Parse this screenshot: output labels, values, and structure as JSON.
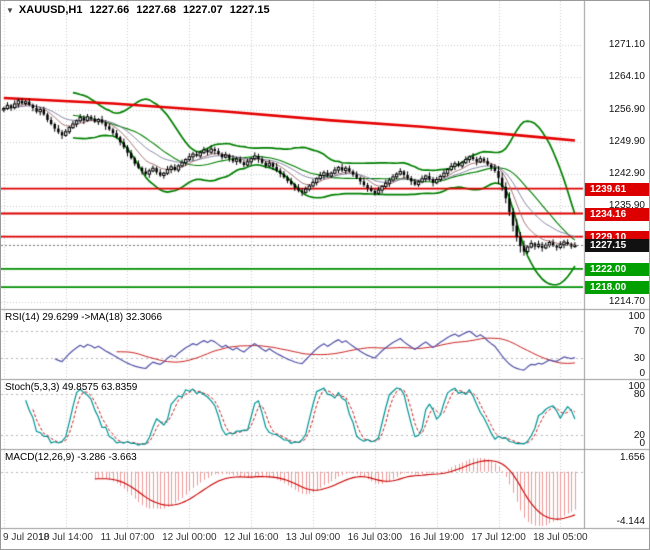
{
  "header": {
    "dropdown_icon": "▼",
    "symbol": "XAUUSD,H1",
    "open": "1227.66",
    "high": "1227.68",
    "low": "1227.07",
    "close": "1227.15"
  },
  "colors": {
    "background": "#ffffff",
    "grid": "#cdcdcd",
    "separator": "#9a9a9a",
    "candle_up": "#ffffff",
    "candle_down": "#000000",
    "candle_border": "#000000",
    "bollinger": "#008000",
    "trend_ma": "#e60000",
    "fast_ma": "#a06868",
    "slow_ma": "#7d7da0",
    "hline_red": "#dd0000",
    "hline_green": "#009000",
    "current_price_line": "#777777",
    "tag_red": "#dd0000",
    "tag_green": "#00a000",
    "tag_current": "#111111",
    "rsi_line": "#5252a8",
    "rsi_ma": "#cc2222",
    "stoch_main": "#009595",
    "stoch_signal": "#cc2222",
    "macd_hist": "#ef9a9a",
    "macd_signal": "#cc0000",
    "axis_text": "#111111",
    "time_text": "#333333"
  },
  "indicator_panels": {
    "rsi": {
      "label": "RSI(14) 29.6299  ->MA(18) 32.3066",
      "ticks": [
        100,
        70,
        30,
        0
      ],
      "levels": [
        70,
        30
      ]
    },
    "stoch": {
      "label": "Stoch(5,3,3) 49.8575 63.8359",
      "ticks": [
        100,
        80,
        20,
        0
      ],
      "levels": [
        80,
        20
      ]
    },
    "macd": {
      "label": "MACD(12,26,9) -3.286 -3.663",
      "tick_top": "1.656",
      "tick_bottom": "-4.144"
    }
  },
  "price_tags": [
    {
      "label": "1239.61",
      "price": 1239.61,
      "type": "resistance",
      "bg": "red"
    },
    {
      "label": "1234.16",
      "price": 1234.16,
      "type": "resistance",
      "bg": "red"
    },
    {
      "label": "1229.10",
      "price": 1229.1,
      "type": "resistance",
      "bg": "red"
    },
    {
      "label": "1227.15",
      "price": 1227.15,
      "type": "current",
      "bg": "black"
    },
    {
      "label": "1222.00",
      "price": 1222.0,
      "type": "support",
      "bg": "green"
    },
    {
      "label": "1218.00",
      "price": 1218.0,
      "type": "support",
      "bg": "green"
    }
  ],
  "chart_data": {
    "type": "candlestick",
    "symbol": "XAUUSD",
    "timeframe": "H1",
    "title": "XAUUSD,H1",
    "last_bar": {
      "open": 1227.66,
      "high": 1227.68,
      "low": 1227.07,
      "close": 1227.15
    },
    "current_price": 1227.15,
    "ylim": [
      1213.2,
      1280.8
    ],
    "y_ticks": [
      1271.1,
      1264.1,
      1256.9,
      1249.9,
      1242.9,
      1235.9,
      1228.9,
      1221.9,
      1214.7
    ],
    "x_tick_labels": [
      "9 Jul 2018",
      "10 Jul 14:00",
      "11 Jul 07:00",
      "12 Jul 00:00",
      "12 Jul 16:00",
      "13 Jul 09:00",
      "16 Jul 03:00",
      "16 Jul 19:00",
      "17 Jul 12:00",
      "18 Jul 05:00"
    ],
    "bars_per_x_tick": 17,
    "open_rule": "previous_close",
    "wick_up_pattern": [
      0.4,
      0.7,
      0.3,
      0.8,
      0.5,
      0.6
    ],
    "wick_down_pattern": [
      0.5,
      0.3,
      0.7,
      0.4,
      0.8,
      0.3
    ],
    "plunge_bars": [
      136,
      143
    ],
    "plunge_extra_wick": 0.6,
    "closes": [
      1257.2,
      1257.9,
      1257.4,
      1258.2,
      1258.9,
      1258.3,
      1258.7,
      1258.0,
      1257.3,
      1256.5,
      1257.0,
      1255.9,
      1254.7,
      1253.8,
      1252.8,
      1252.0,
      1251.3,
      1252.1,
      1253.0,
      1253.8,
      1254.5,
      1255.2,
      1254.6,
      1255.4,
      1255.0,
      1254.3,
      1254.8,
      1254.1,
      1253.3,
      1252.6,
      1251.8,
      1250.9,
      1249.8,
      1248.7,
      1247.5,
      1246.3,
      1245.1,
      1244.2,
      1243.4,
      1242.8,
      1243.5,
      1244.1,
      1243.2,
      1242.5,
      1243.0,
      1243.8,
      1244.4,
      1243.7,
      1244.6,
      1245.3,
      1246.0,
      1246.6,
      1247.2,
      1246.8,
      1247.5,
      1248.1,
      1247.6,
      1248.3,
      1247.9,
      1247.2,
      1246.5,
      1247.0,
      1246.2,
      1245.6,
      1246.1,
      1245.4,
      1244.8,
      1245.5,
      1246.2,
      1246.8,
      1246.1,
      1245.3,
      1244.6,
      1245.2,
      1244.4,
      1243.6,
      1242.9,
      1242.1,
      1241.3,
      1240.6,
      1239.8,
      1239.2,
      1238.8,
      1239.5,
      1240.2,
      1241.0,
      1241.8,
      1242.5,
      1243.1,
      1242.4,
      1243.0,
      1243.7,
      1244.3,
      1243.6,
      1244.1,
      1243.4,
      1242.7,
      1242.0,
      1241.2,
      1240.4,
      1239.7,
      1239.1,
      1238.6,
      1239.3,
      1240.1,
      1240.8,
      1241.5,
      1242.2,
      1242.8,
      1243.4,
      1242.6,
      1241.9,
      1241.2,
      1240.5,
      1241.1,
      1241.8,
      1242.4,
      1241.7,
      1240.9,
      1241.6,
      1242.3,
      1243.0,
      1243.8,
      1244.5,
      1245.1,
      1244.6,
      1245.3,
      1246.0,
      1246.6,
      1246.1,
      1245.5,
      1246.2,
      1245.7,
      1244.9,
      1244.2,
      1243.5,
      1242.0,
      1240.0,
      1237.5,
      1234.5,
      1231.5,
      1229.0,
      1227.0,
      1225.8,
      1226.8,
      1227.6,
      1226.9,
      1227.4,
      1226.6,
      1227.2,
      1227.8,
      1227.1,
      1226.7,
      1227.3,
      1227.9,
      1227.4,
      1226.9,
      1227.15
    ],
    "overlays": {
      "bollinger": {
        "period": 20,
        "deviation": 2,
        "color": "#008000"
      },
      "trend_ma": {
        "color": "#e60000",
        "points": [
          [
            0,
            1259.5
          ],
          [
            30,
            1258.3
          ],
          [
            60,
            1256.6
          ],
          [
            90,
            1254.6
          ],
          [
            115,
            1253.2
          ],
          [
            135,
            1251.8
          ],
          [
            150,
            1250.7
          ],
          [
            157,
            1250.2
          ]
        ]
      },
      "fast_ma": {
        "type": "ema",
        "period": 8
      },
      "slow_ma": {
        "type": "ema",
        "period": 17
      }
    },
    "hlines": [
      {
        "price": 1239.61,
        "color": "red"
      },
      {
        "price": 1234.16,
        "color": "red"
      },
      {
        "price": 1229.1,
        "color": "red"
      },
      {
        "price": 1222.0,
        "color": "green"
      },
      {
        "price": 1218.0,
        "color": "green"
      }
    ],
    "indicators": {
      "rsi": {
        "period": 14,
        "ma_period": 18,
        "current": 29.6299,
        "ma_current": 32.3066,
        "levels": [
          70,
          30
        ],
        "range": [
          0,
          100
        ]
      },
      "stochastic": {
        "k": 5,
        "d": 3,
        "slowing": 3,
        "current": 49.8575,
        "signal_current": 63.8359,
        "levels": [
          80,
          20
        ],
        "range": [
          0,
          100
        ]
      },
      "macd": {
        "fast": 12,
        "slow": 26,
        "signal": 9,
        "current": -3.286,
        "signal_current": -3.663,
        "scale_max": 1.656,
        "scale_min": -4.144
      }
    }
  }
}
